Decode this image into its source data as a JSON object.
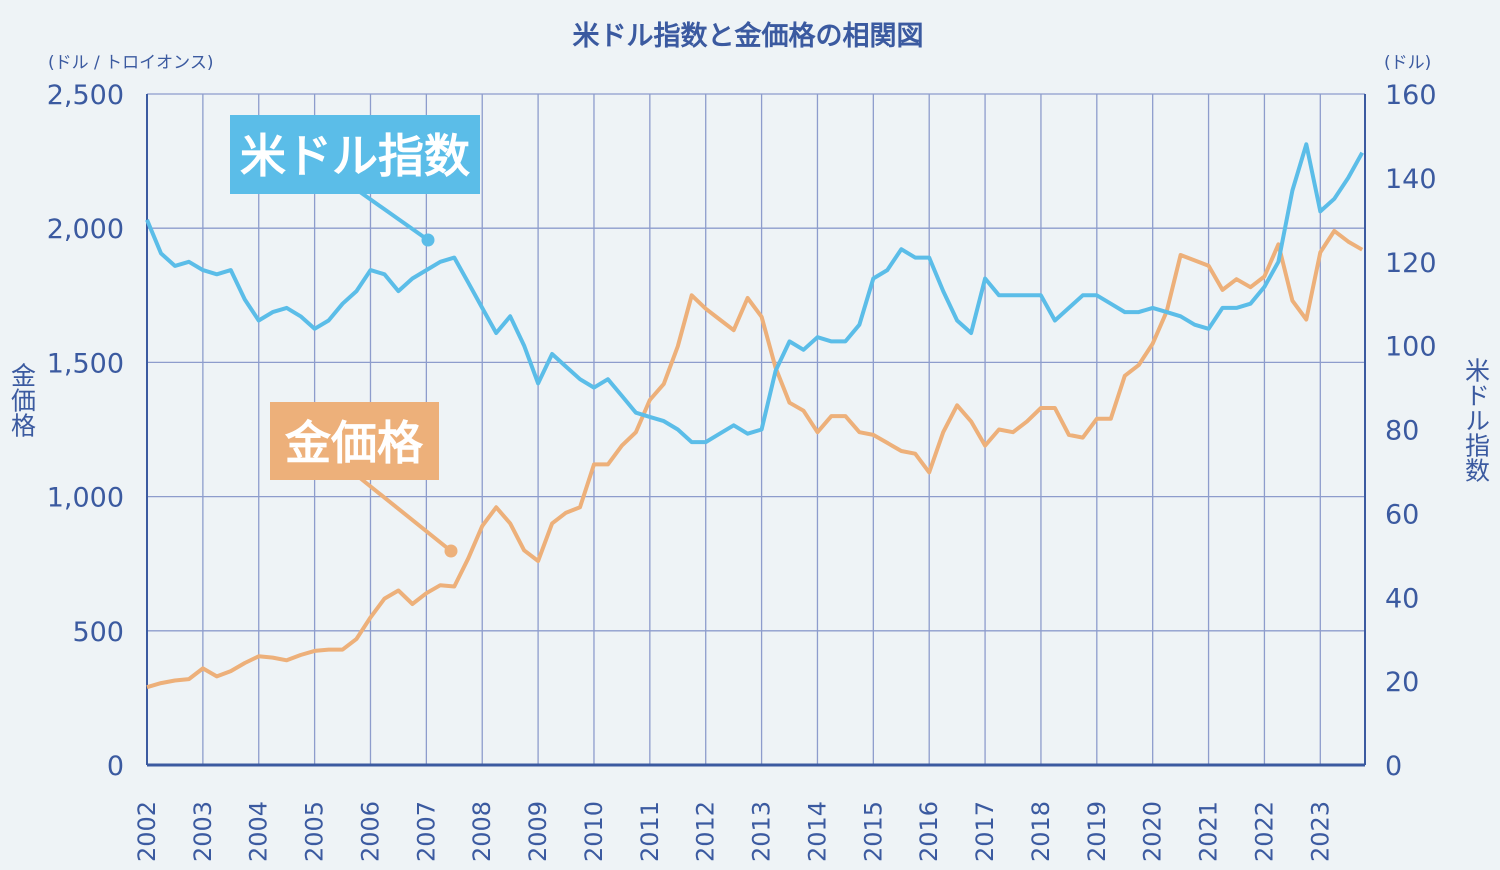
{
  "chart_data": {
    "type": "line",
    "title": "米ドル指数と金価格の相関図",
    "left_axis": {
      "unit": "(ドル / トロイオンス)",
      "label": "金価格",
      "ylim": [
        0,
        2500
      ],
      "ticks": [
        "0",
        "500",
        "1,000",
        "1,500",
        "2,000",
        "2,500"
      ]
    },
    "right_axis": {
      "unit": "(ドル)",
      "label": "米ドル指数",
      "ylim": [
        0,
        160
      ],
      "ticks": [
        "0",
        "20",
        "40",
        "60",
        "80",
        "100",
        "120",
        "140",
        "160"
      ]
    },
    "x_ticks": [
      "2002",
      "2003",
      "2004",
      "2005",
      "2006",
      "2007",
      "2008",
      "2009",
      "2010",
      "2011",
      "2012",
      "2013",
      "2014",
      "2015",
      "2016",
      "2017",
      "2018",
      "2019",
      "2020",
      "2021",
      "2022",
      "2023"
    ],
    "grid": true,
    "series": [
      {
        "name": "米ドル指数",
        "axis": "right",
        "color": "#5bbde8",
        "points": [
          [
            "2002-01",
            130
          ],
          [
            "2002-04",
            122
          ],
          [
            "2002-07",
            119
          ],
          [
            "2002-10",
            120
          ],
          [
            "2003-01",
            118
          ],
          [
            "2003-04",
            117
          ],
          [
            "2003-07",
            118
          ],
          [
            "2003-10",
            111
          ],
          [
            "2004-01",
            106
          ],
          [
            "2004-04",
            108
          ],
          [
            "2004-07",
            109
          ],
          [
            "2004-10",
            107
          ],
          [
            "2005-01",
            104
          ],
          [
            "2005-04",
            106
          ],
          [
            "2005-07",
            110
          ],
          [
            "2005-10",
            113
          ],
          [
            "2006-01",
            118
          ],
          [
            "2006-04",
            117
          ],
          [
            "2006-07",
            113
          ],
          [
            "2006-10",
            116
          ],
          [
            "2007-01",
            118
          ],
          [
            "2007-04",
            120
          ],
          [
            "2007-07",
            121
          ],
          [
            "2007-10",
            115
          ],
          [
            "2008-01",
            109
          ],
          [
            "2008-04",
            103
          ],
          [
            "2008-07",
            107
          ],
          [
            "2008-10",
            100
          ],
          [
            "2009-01",
            91
          ],
          [
            "2009-04",
            98
          ],
          [
            "2009-07",
            95
          ],
          [
            "2009-10",
            92
          ],
          [
            "2010-01",
            90
          ],
          [
            "2010-04",
            92
          ],
          [
            "2010-07",
            88
          ],
          [
            "2010-10",
            84
          ],
          [
            "2011-01",
            83
          ],
          [
            "2011-04",
            82
          ],
          [
            "2011-07",
            80
          ],
          [
            "2011-10",
            77
          ],
          [
            "2012-01",
            77
          ],
          [
            "2012-04",
            79
          ],
          [
            "2012-07",
            81
          ],
          [
            "2012-10",
            79
          ],
          [
            "2013-01",
            80
          ],
          [
            "2013-04",
            94
          ],
          [
            "2013-07",
            101
          ],
          [
            "2013-10",
            99
          ],
          [
            "2014-01",
            102
          ],
          [
            "2014-04",
            101
          ],
          [
            "2014-07",
            101
          ],
          [
            "2014-10",
            105
          ],
          [
            "2015-01",
            116
          ],
          [
            "2015-04",
            118
          ],
          [
            "2015-07",
            123
          ],
          [
            "2015-10",
            121
          ],
          [
            "2016-01",
            121
          ],
          [
            "2016-04",
            113
          ],
          [
            "2016-07",
            106
          ],
          [
            "2016-10",
            103
          ],
          [
            "2017-01",
            116
          ],
          [
            "2017-04",
            112
          ],
          [
            "2017-07",
            112
          ],
          [
            "2017-10",
            112
          ],
          [
            "2018-01",
            112
          ],
          [
            "2018-04",
            106
          ],
          [
            "2018-07",
            109
          ],
          [
            "2018-10",
            112
          ],
          [
            "2019-01",
            112
          ],
          [
            "2019-04",
            110
          ],
          [
            "2019-07",
            108
          ],
          [
            "2019-10",
            108
          ],
          [
            "2020-01",
            109
          ],
          [
            "2020-04",
            108
          ],
          [
            "2020-07",
            107
          ],
          [
            "2020-10",
            105
          ],
          [
            "2021-01",
            104
          ],
          [
            "2021-04",
            109
          ],
          [
            "2021-07",
            109
          ],
          [
            "2021-10",
            110
          ],
          [
            "2022-01",
            114
          ],
          [
            "2022-04",
            120
          ],
          [
            "2022-07",
            137
          ],
          [
            "2022-10",
            148
          ],
          [
            "2023-01",
            132
          ],
          [
            "2023-04",
            135
          ],
          [
            "2023-07",
            140
          ],
          [
            "2023-10",
            146
          ]
        ]
      },
      {
        "name": "金価格",
        "axis": "left",
        "color": "#edb07a",
        "points": [
          [
            "2002-01",
            290
          ],
          [
            "2002-04",
            305
          ],
          [
            "2002-07",
            315
          ],
          [
            "2002-10",
            320
          ],
          [
            "2003-01",
            360
          ],
          [
            "2003-04",
            330
          ],
          [
            "2003-07",
            350
          ],
          [
            "2003-10",
            380
          ],
          [
            "2004-01",
            405
          ],
          [
            "2004-04",
            400
          ],
          [
            "2004-07",
            390
          ],
          [
            "2004-10",
            410
          ],
          [
            "2005-01",
            425
          ],
          [
            "2005-04",
            430
          ],
          [
            "2005-07",
            430
          ],
          [
            "2005-10",
            470
          ],
          [
            "2006-01",
            550
          ],
          [
            "2006-04",
            620
          ],
          [
            "2006-07",
            650
          ],
          [
            "2006-10",
            600
          ],
          [
            "2007-01",
            640
          ],
          [
            "2007-04",
            670
          ],
          [
            "2007-07",
            665
          ],
          [
            "2007-10",
            770
          ],
          [
            "2008-01",
            890
          ],
          [
            "2008-04",
            960
          ],
          [
            "2008-07",
            900
          ],
          [
            "2008-10",
            800
          ],
          [
            "2009-01",
            760
          ],
          [
            "2009-04",
            900
          ],
          [
            "2009-07",
            940
          ],
          [
            "2009-10",
            960
          ],
          [
            "2010-01",
            1120
          ],
          [
            "2010-04",
            1120
          ],
          [
            "2010-07",
            1190
          ],
          [
            "2010-10",
            1240
          ],
          [
            "2011-01",
            1360
          ],
          [
            "2011-04",
            1420
          ],
          [
            "2011-07",
            1560
          ],
          [
            "2011-10",
            1750
          ],
          [
            "2012-01",
            1700
          ],
          [
            "2012-04",
            1660
          ],
          [
            "2012-07",
            1620
          ],
          [
            "2012-10",
            1740
          ],
          [
            "2013-01",
            1670
          ],
          [
            "2013-04",
            1480
          ],
          [
            "2013-07",
            1350
          ],
          [
            "2013-10",
            1320
          ],
          [
            "2014-01",
            1240
          ],
          [
            "2014-04",
            1300
          ],
          [
            "2014-07",
            1300
          ],
          [
            "2014-10",
            1240
          ],
          [
            "2015-01",
            1230
          ],
          [
            "2015-04",
            1200
          ],
          [
            "2015-07",
            1170
          ],
          [
            "2015-10",
            1160
          ],
          [
            "2016-01",
            1090
          ],
          [
            "2016-04",
            1240
          ],
          [
            "2016-07",
            1340
          ],
          [
            "2016-10",
            1280
          ],
          [
            "2017-01",
            1190
          ],
          [
            "2017-04",
            1250
          ],
          [
            "2017-07",
            1240
          ],
          [
            "2017-10",
            1280
          ],
          [
            "2018-01",
            1330
          ],
          [
            "2018-04",
            1330
          ],
          [
            "2018-07",
            1230
          ],
          [
            "2018-10",
            1220
          ],
          [
            "2019-01",
            1290
          ],
          [
            "2019-04",
            1290
          ],
          [
            "2019-07",
            1450
          ],
          [
            "2019-10",
            1490
          ],
          [
            "2020-01",
            1570
          ],
          [
            "2020-04",
            1690
          ],
          [
            "2020-07",
            1900
          ],
          [
            "2020-10",
            1880
          ],
          [
            "2021-01",
            1860
          ],
          [
            "2021-04",
            1770
          ],
          [
            "2021-07",
            1810
          ],
          [
            "2021-10",
            1780
          ],
          [
            "2022-01",
            1820
          ],
          [
            "2022-04",
            1940
          ],
          [
            "2022-07",
            1730
          ],
          [
            "2022-10",
            1660
          ],
          [
            "2023-01",
            1910
          ],
          [
            "2023-04",
            1990
          ],
          [
            "2023-07",
            1950
          ],
          [
            "2023-10",
            1920
          ]
        ]
      }
    ]
  },
  "callouts": {
    "dollar_index": "米ドル指数",
    "gold_price": "金価格"
  }
}
